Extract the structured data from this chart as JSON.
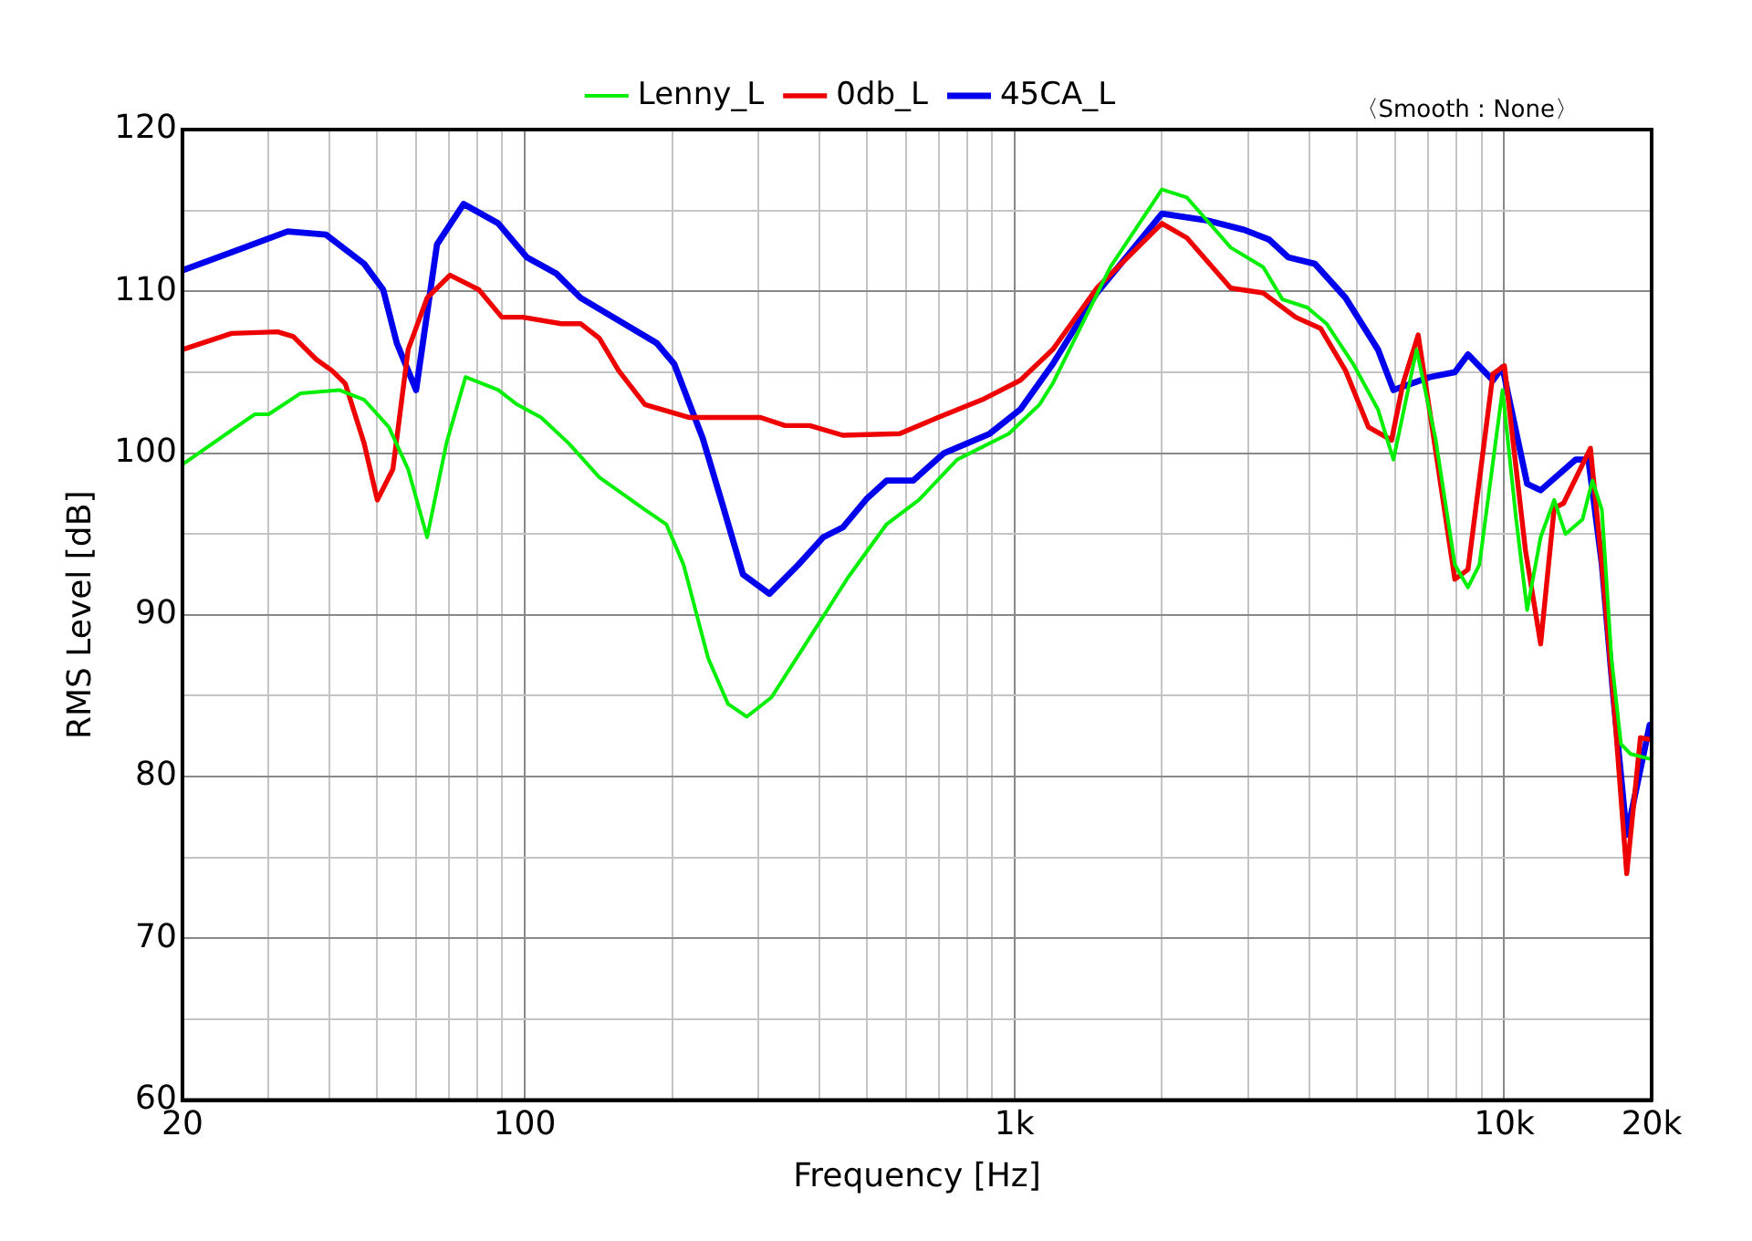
{
  "chart_data": {
    "type": "line",
    "xlabel": "Frequency [Hz]",
    "ylabel": "RMS Level [dB]",
    "log": "x",
    "grid": true,
    "legend": "top",
    "marker": "none",
    "line_style": "solid",
    "annotations": [
      "〈Smooth : None〉"
    ],
    "xlim": [
      20,
      20000
    ],
    "ylim": [
      60,
      120
    ],
    "xticks": [
      20,
      {
        "value": 30,
        "label": null
      },
      {
        "value": 40,
        "label": null
      },
      {
        "value": 50,
        "label": null
      },
      {
        "value": 60,
        "label": null
      },
      {
        "value": 70,
        "label": null
      },
      {
        "value": 80,
        "label": null
      },
      {
        "value": 90,
        "label": null
      },
      100,
      {
        "value": 200,
        "label": null
      },
      {
        "value": 300,
        "label": null
      },
      {
        "value": 400,
        "label": null
      },
      {
        "value": 500,
        "label": null
      },
      {
        "value": 600,
        "label": null
      },
      {
        "value": 700,
        "label": null
      },
      {
        "value": 800,
        "label": null
      },
      {
        "value": 900,
        "label": null
      },
      {
        "value": 1000,
        "label": "1k"
      },
      {
        "value": 2000,
        "label": null
      },
      {
        "value": 3000,
        "label": null
      },
      {
        "value": 4000,
        "label": null
      },
      {
        "value": 5000,
        "label": null
      },
      {
        "value": 6000,
        "label": null
      },
      {
        "value": 7000,
        "label": null
      },
      {
        "value": 8000,
        "label": null
      },
      {
        "value": 9000,
        "label": null
      },
      {
        "value": 10000,
        "label": "10k"
      },
      {
        "value": 20000,
        "label": "20k"
      }
    ],
    "yticks": [
      60,
      {
        "value": 65,
        "label": null
      },
      70,
      {
        "value": 75,
        "label": null
      },
      80,
      {
        "value": 85,
        "label": null
      },
      90,
      {
        "value": 95,
        "label": null
      },
      100,
      {
        "value": 105,
        "label": null
      },
      110,
      {
        "value": 115,
        "label": null
      },
      120
    ],
    "series": [
      {
        "name": "Lenny_L",
        "color": "#00ee00",
        "x": [
          20,
          28.1,
          30,
          34.9,
          41.8,
          47,
          52.8,
          57.8,
          63.2,
          69.2,
          75.7,
          88.3,
          96.5,
          108,
          123,
          142,
          176,
          194.6,
          211,
          237,
          260,
          284,
          319,
          382,
          457,
          548,
          638,
          764,
          974,
          1125,
          1197,
          1570,
          2000,
          2250,
          2765,
          3221,
          3525,
          3963,
          4337,
          4920,
          5524,
          5940,
          6623,
          7241,
          7928,
          8434,
          8900,
          9920,
          10570,
          11140,
          11870,
          12650,
          13340,
          14450,
          15140,
          15830,
          16560,
          17320,
          18110,
          19820
        ],
        "values": [
          99.3,
          102.4,
          102.4,
          103.7,
          103.9,
          103.3,
          101.6,
          99,
          94.8,
          100.6,
          104.7,
          103.9,
          103,
          102.2,
          100.6,
          98.5,
          96.5,
          95.6,
          93.1,
          87.3,
          84.5,
          83.7,
          84.9,
          88.6,
          92.3,
          95.6,
          97.1,
          99.6,
          101.2,
          103,
          104.3,
          111.5,
          116.3,
          115.8,
          112.7,
          111.5,
          109.5,
          109,
          108,
          105.5,
          102.7,
          99.6,
          106.4,
          100.9,
          93.1,
          91.7,
          93.1,
          103.9,
          96,
          90.3,
          94.8,
          97.1,
          95,
          95.9,
          98.3,
          96.5,
          87.3,
          82,
          81.4,
          81.1
        ]
      },
      {
        "name": "0db_L",
        "color": "#ee0000",
        "x": [
          20,
          25.2,
          31.3,
          33.7,
          37.5,
          40.4,
          43,
          47,
          50,
          53.8,
          57.8,
          63.2,
          70.4,
          80.6,
          89.8,
          99.1,
          118.7,
          130,
          142,
          155.5,
          176,
          217,
          303,
          340,
          382,
          446,
          583,
          698,
          859,
          1028,
          1197,
          1473,
          2000,
          2250,
          2765,
          3221,
          3751,
          4220,
          4743,
          5285,
          5888,
          6214,
          6674,
          7241,
          7928,
          8434,
          9486,
          10010,
          11050,
          11870,
          12650,
          13220,
          15000,
          15830,
          16710,
          17790,
          18970,
          19820
        ],
        "values": [
          106.4,
          107.4,
          107.5,
          107.2,
          105.8,
          105.1,
          104.3,
          100.6,
          97.1,
          99,
          106.4,
          109.6,
          111,
          110.1,
          108.4,
          108.4,
          108,
          108,
          107.1,
          105.1,
          103,
          102.2,
          102.2,
          101.7,
          101.7,
          101.1,
          101.2,
          102.2,
          103.3,
          104.5,
          106.4,
          110.2,
          114.2,
          113.3,
          110.2,
          109.9,
          108.4,
          107.7,
          105.1,
          101.6,
          100.8,
          104.3,
          107.3,
          100.2,
          92.2,
          92.8,
          104.9,
          105.4,
          94,
          88.2,
          96.6,
          96.9,
          100.3,
          93.1,
          84.9,
          74,
          82.4,
          82.3
        ]
      },
      {
        "name": "45CA_L",
        "color": "#0000ee",
        "x": [
          20,
          32.8,
          39.3,
          47,
          51.4,
          54.8,
          60,
          66.2,
          75,
          88.3,
          101,
          116,
          130,
          186,
          202,
          231,
          253,
          279,
          316,
          362,
          407,
          446,
          500,
          548,
          621,
          718,
          890,
          1028,
          1197,
          1473,
          2000,
          2462,
          2945,
          3310,
          3624,
          4107,
          4743,
          5524,
          5940,
          7045,
          7928,
          8434,
          9486,
          9920,
          11140,
          11870,
          14000,
          14860,
          15830,
          16710,
          17790,
          19820
        ],
        "values": [
          111.3,
          113.7,
          113.5,
          111.7,
          110.1,
          106.8,
          103.9,
          112.9,
          115.4,
          114.2,
          112.1,
          111.1,
          109.6,
          106.8,
          105.5,
          100.9,
          96.9,
          92.5,
          91.3,
          93.1,
          94.8,
          95.4,
          97.2,
          98.3,
          98.3,
          100,
          101.2,
          102.7,
          105.5,
          109.9,
          114.8,
          114.4,
          113.8,
          113.2,
          112.1,
          111.7,
          109.6,
          106.4,
          103.9,
          104.7,
          105,
          106.1,
          104.5,
          105.3,
          98.1,
          97.7,
          99.6,
          99.6,
          93.1,
          84.9,
          76.4,
          83.2
        ]
      }
    ]
  }
}
